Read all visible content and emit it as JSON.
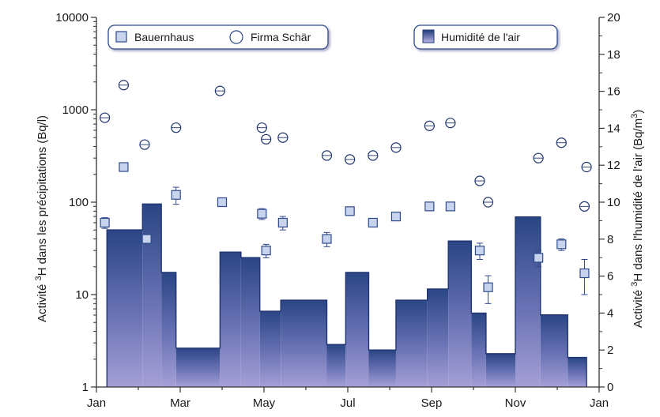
{
  "chart_data": {
    "type": "bar+scatter",
    "title": "",
    "xlabel": "",
    "x_tick_labels": [
      "Jan",
      "Mar",
      "May",
      "Jul",
      "Sep",
      "Nov",
      "Jan"
    ],
    "x_range_months": [
      0,
      12
    ],
    "ylabel_left": {
      "prefix": "Activité ",
      "sup": "3",
      "suffix": "H dans les précipitations (Bq/l)"
    },
    "ylabel_right": {
      "prefix": "Activité ",
      "sup": "3",
      "suffix": "H dans l'humidité de l'air (Bq/m",
      "sup2": "3",
      "end": ")"
    },
    "y_left": {
      "scale": "log",
      "range": [
        1,
        10000
      ],
      "tick_labels": [
        "1",
        "10",
        "100",
        "1000",
        "10000"
      ]
    },
    "y_right": {
      "scale": "linear",
      "range": [
        0,
        20
      ],
      "tick_labels": [
        "0",
        "2",
        "4",
        "6",
        "8",
        "10",
        "12",
        "14",
        "16",
        "18",
        "20"
      ]
    },
    "series": [
      {
        "name": "Humidité de l'air",
        "kind": "step-bar",
        "axis": "right",
        "color": "#2e4a8c",
        "segments": [
          {
            "start": 0.25,
            "end": 1.1,
            "value": 8.5
          },
          {
            "start": 1.1,
            "end": 1.55,
            "value": 9.9
          },
          {
            "start": 1.55,
            "end": 1.9,
            "value": 6.2
          },
          {
            "start": 1.9,
            "end": 2.95,
            "value": 2.1
          },
          {
            "start": 2.95,
            "end": 3.45,
            "value": 7.3
          },
          {
            "start": 3.45,
            "end": 3.9,
            "value": 7.0
          },
          {
            "start": 3.9,
            "end": 4.4,
            "value": 4.1
          },
          {
            "start": 4.4,
            "end": 5.5,
            "value": 4.7
          },
          {
            "start": 5.5,
            "end": 5.95,
            "value": 2.3
          },
          {
            "start": 5.95,
            "end": 6.5,
            "value": 6.2
          },
          {
            "start": 6.5,
            "end": 7.15,
            "value": 2.0
          },
          {
            "start": 7.15,
            "end": 7.9,
            "value": 4.7
          },
          {
            "start": 7.9,
            "end": 8.4,
            "value": 5.3
          },
          {
            "start": 8.4,
            "end": 8.95,
            "value": 7.9
          },
          {
            "start": 8.95,
            "end": 9.3,
            "value": 4.0
          },
          {
            "start": 9.3,
            "end": 10.0,
            "value": 1.8
          },
          {
            "start": 10.0,
            "end": 10.6,
            "value": 9.2
          },
          {
            "start": 10.6,
            "end": 11.25,
            "value": 3.9
          },
          {
            "start": 11.25,
            "end": 11.7,
            "value": 1.6
          }
        ]
      },
      {
        "name": "Bauernhaus",
        "kind": "scatter",
        "marker": "square",
        "axis": "left",
        "color": "#c8d4ee",
        "points": [
          {
            "x": 0.2,
            "y": 60,
            "err": 8
          },
          {
            "x": 0.65,
            "y": 240,
            "err": 20
          },
          {
            "x": 1.2,
            "y": 40,
            "err": 4
          },
          {
            "x": 1.9,
            "y": 120,
            "err": 25
          },
          {
            "x": 3.0,
            "y": 100,
            "err": 8
          },
          {
            "x": 3.95,
            "y": 75,
            "err": 10
          },
          {
            "x": 4.05,
            "y": 30,
            "err": 5
          },
          {
            "x": 4.45,
            "y": 60,
            "err": 10
          },
          {
            "x": 5.5,
            "y": 40,
            "err": 7
          },
          {
            "x": 6.05,
            "y": 80,
            "err": 8
          },
          {
            "x": 6.6,
            "y": 60,
            "err": 5
          },
          {
            "x": 7.15,
            "y": 70,
            "err": 6
          },
          {
            "x": 7.95,
            "y": 90,
            "err": 7
          },
          {
            "x": 8.45,
            "y": 90,
            "err": 8
          },
          {
            "x": 9.15,
            "y": 30,
            "err": 6
          },
          {
            "x": 9.35,
            "y": 12,
            "err": 4
          },
          {
            "x": 10.55,
            "y": 25,
            "err": 5
          },
          {
            "x": 11.1,
            "y": 35,
            "err": 5
          },
          {
            "x": 11.65,
            "y": 17,
            "err": 7
          }
        ]
      },
      {
        "name": "Firma Schär",
        "kind": "scatter",
        "marker": "circle",
        "axis": "left",
        "color": "#ffffff",
        "points": [
          {
            "x": 0.2,
            "y": 820
          },
          {
            "x": 0.65,
            "y": 1850
          },
          {
            "x": 1.15,
            "y": 420
          },
          {
            "x": 1.9,
            "y": 640
          },
          {
            "x": 2.95,
            "y": 1600
          },
          {
            "x": 3.95,
            "y": 640
          },
          {
            "x": 4.05,
            "y": 480
          },
          {
            "x": 4.45,
            "y": 500
          },
          {
            "x": 5.5,
            "y": 320
          },
          {
            "x": 6.05,
            "y": 290
          },
          {
            "x": 6.6,
            "y": 320
          },
          {
            "x": 7.15,
            "y": 390
          },
          {
            "x": 7.95,
            "y": 670
          },
          {
            "x": 8.45,
            "y": 720
          },
          {
            "x": 9.15,
            "y": 170
          },
          {
            "x": 9.35,
            "y": 100
          },
          {
            "x": 10.55,
            "y": 300
          },
          {
            "x": 11.1,
            "y": 440
          },
          {
            "x": 11.65,
            "y": 90
          },
          {
            "x": 11.7,
            "y": 240
          }
        ]
      }
    ],
    "legend": {
      "left_box": [
        "Bauernhaus",
        "Firma Schär"
      ],
      "right_box": [
        "Humidité de l'air"
      ],
      "placement": "top"
    },
    "grid": false
  }
}
